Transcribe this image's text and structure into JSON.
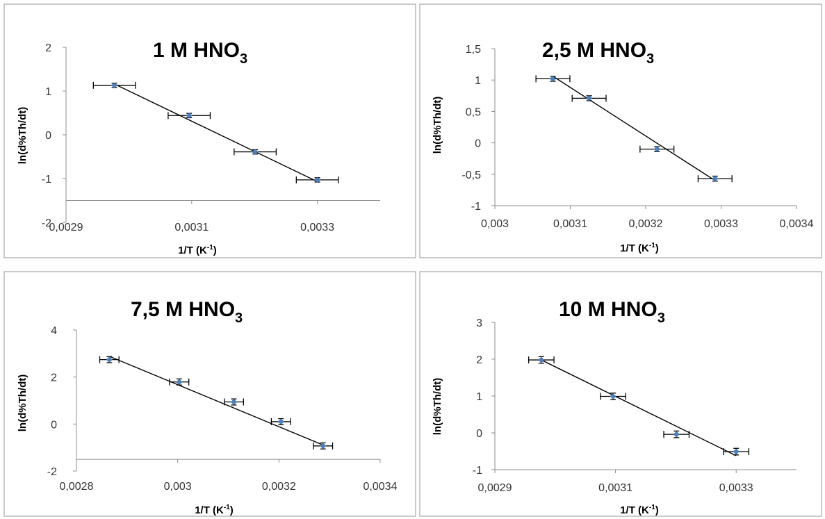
{
  "chart_data": [
    {
      "type": "scatter",
      "title": "1 M HNO",
      "title_subscript": "3",
      "xlabel": "1/T (K",
      "xlabel_superscript": "-1",
      "xlabel_close": ")",
      "ylabel": "ln(d%Th/dt)",
      "xlim": [
        0.0029,
        0.0034
      ],
      "ylim": [
        -2,
        2
      ],
      "x_axis_at_y": -1.5,
      "x_ticks": [
        0.0029,
        0.0031,
        0.0033
      ],
      "x_tick_labels": [
        "0,0029",
        "0,0031",
        "0,0033"
      ],
      "y_ticks": [
        -2,
        -1,
        0,
        1,
        2
      ],
      "y_tick_labels": [
        "-2",
        "-1",
        "0",
        "1",
        "2"
      ],
      "x": [
        0.002977,
        0.003096,
        0.003201,
        0.0033
      ],
      "y": [
        1.13,
        0.44,
        -0.39,
        -1.03
      ],
      "x_error": 3.35e-05,
      "y_error": 0.05,
      "trendline": {
        "x": [
          0.002977,
          0.0033
        ],
        "y": [
          1.16,
          -1.07
        ]
      }
    },
    {
      "type": "scatter",
      "title": "2,5 M HNO",
      "title_subscript": "3",
      "xlabel": "1/T (K",
      "xlabel_superscript": "-1",
      "xlabel_close": ")",
      "ylabel": "ln(d%Th/dt)",
      "xlim": [
        0.003,
        0.0034
      ],
      "ylim": [
        -1,
        1.5
      ],
      "x_axis_at_y": -1,
      "x_ticks": [
        0.003,
        0.0031,
        0.0032,
        0.0033,
        0.0034
      ],
      "x_tick_labels": [
        "0,003",
        "0,0031",
        "0,0032",
        "0,0033",
        "0,0034"
      ],
      "y_ticks": [
        -1,
        -0.5,
        0,
        0.5,
        1,
        1.5
      ],
      "y_tick_labels": [
        "-1",
        "-0,5",
        "0",
        "0,5",
        "1",
        "1,5"
      ],
      "x": [
        0.003077,
        0.003125,
        0.003215,
        0.003292
      ],
      "y": [
        1.02,
        0.71,
        -0.1,
        -0.57
      ],
      "x_error": 2.25e-05,
      "y_error": 0.04,
      "trendline": {
        "x": [
          0.003077,
          0.003292
        ],
        "y": [
          1.06,
          -0.6
        ]
      }
    },
    {
      "type": "scatter",
      "title": "7,5 M HNO",
      "title_subscript": "3",
      "xlabel": "1/T (K",
      "xlabel_superscript": "-1",
      "xlabel_close": ")",
      "ylabel": "ln(d%Th/dt)",
      "xlim": [
        0.0028,
        0.0034
      ],
      "ylim": [
        -2,
        4
      ],
      "x_axis_at_y": -1.5,
      "x_ticks": [
        0.0028,
        0.003,
        0.0032,
        0.0034
      ],
      "x_tick_labels": [
        "0,0028",
        "0,003",
        "0,0032",
        "0,0034"
      ],
      "y_ticks": [
        -2,
        0,
        2,
        4
      ],
      "y_tick_labels": [
        "-2",
        "0",
        "2",
        "4"
      ],
      "x": [
        0.002865,
        0.003003,
        0.003111,
        0.003204,
        0.003287
      ],
      "y": [
        2.74,
        1.79,
        0.94,
        0.1,
        -0.93
      ],
      "x_error": 1.9e-05,
      "y_error": 0.13,
      "trendline": {
        "x": [
          0.002865,
          0.003287
        ],
        "y": [
          2.88,
          -0.89
        ]
      }
    },
    {
      "type": "scatter",
      "title": "10 M HNO",
      "title_subscript": "3",
      "xlabel": "1/T (K",
      "xlabel_superscript": "-1",
      "xlabel_close": ")",
      "ylabel": "ln(d%Th/dt)",
      "xlim": [
        0.0029,
        0.0034
      ],
      "ylim": [
        -1,
        3
      ],
      "x_axis_at_y": -1,
      "x_ticks": [
        0.0029,
        0.0031,
        0.0033
      ],
      "x_tick_labels": [
        "0,0029",
        "0,0031",
        "0,0033"
      ],
      "y_ticks": [
        -1,
        0,
        1,
        2,
        3
      ],
      "y_tick_labels": [
        "-1",
        "0",
        "1",
        "2",
        "3"
      ],
      "x": [
        0.002977,
        0.003096,
        0.003201,
        0.0033
      ],
      "y": [
        1.98,
        0.99,
        -0.04,
        -0.51
      ],
      "x_error": 2.1e-05,
      "y_error": 0.09,
      "trendline": {
        "x": [
          0.002977,
          0.0033
        ],
        "y": [
          1.98,
          -0.62
        ]
      }
    }
  ]
}
